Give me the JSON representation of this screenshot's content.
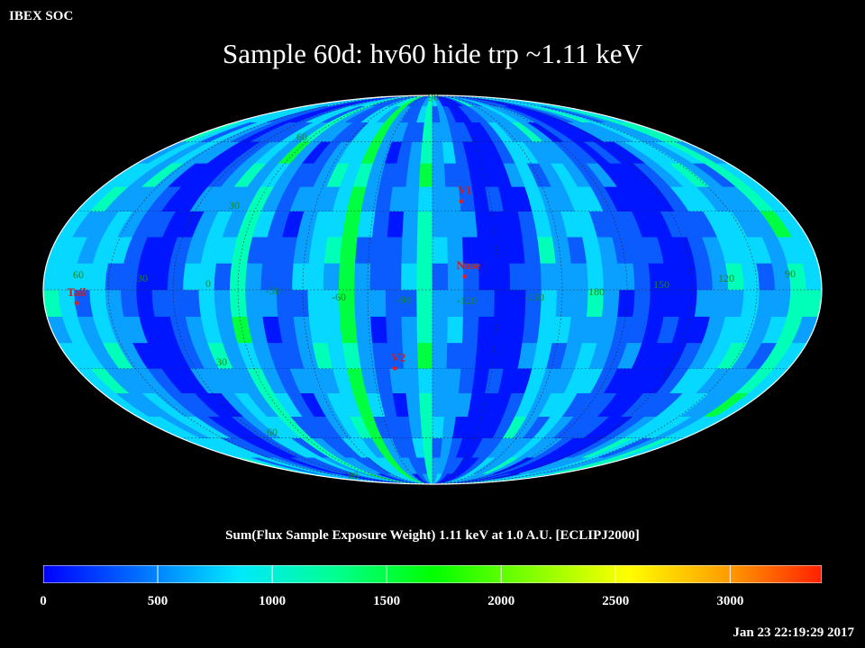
{
  "corner_label": "IBEX SOC",
  "title": "Sample 60d: hv60 hide trp ~1.11 keV",
  "colorbar": {
    "title": "Sum(Flux Sample Exposure Weight)  1.11 keV at 1.0 A.U. [ECLIPJ2000]",
    "min": 0,
    "max": 3400,
    "ticks": [
      "0",
      "500",
      "1000",
      "1500",
      "2000",
      "2500",
      "3000"
    ],
    "colors": [
      "#0000ff",
      "#0070ff",
      "#00e8ff",
      "#00ff90",
      "#00ff00",
      "#80ff00",
      "#ffff00",
      "#ffa000",
      "#ff2000"
    ]
  },
  "timestamp": "Jan 23 22:19:29 2017",
  "map": {
    "projection": "Mollweide",
    "lat_labels": [
      "90",
      "60",
      "30",
      "30",
      "60",
      "90"
    ],
    "lon_labels": [
      "60",
      "30",
      "0",
      "-30",
      "-60",
      "-90",
      "-120",
      "-150",
      "180",
      "150",
      "120",
      "90"
    ],
    "markers": [
      {
        "name": "V1",
        "lon": -105,
        "lat": 34
      },
      {
        "name": "Nose",
        "lon": -105,
        "lat": 5
      },
      {
        "name": "V2",
        "lon": -71,
        "lat": -30
      },
      {
        "name": "Tail",
        "lon": 75,
        "lat": -5
      }
    ]
  }
}
